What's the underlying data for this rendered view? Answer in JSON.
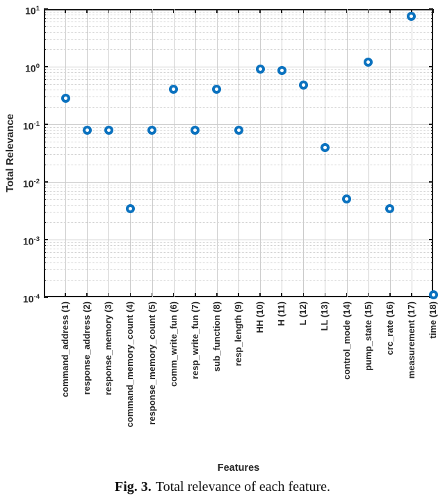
{
  "chart_data": {
    "type": "scatter",
    "title": "",
    "xlabel": "Features",
    "ylabel": "Total Relevance",
    "yscale": "log",
    "ylim": [
      0.0001,
      10
    ],
    "xlim": [
      0,
      18
    ],
    "grid": "on",
    "minor_grid": "on",
    "legend": "none",
    "marker": {
      "style": "open-circle",
      "color": "#0b72bf"
    },
    "y_tick_exponents": [
      1,
      0,
      -1,
      -2,
      -3,
      -4
    ],
    "points": [
      {
        "x": 1,
        "label": "command_address (1)",
        "value": 0.28
      },
      {
        "x": 2,
        "label": "response_address (2)",
        "value": 0.078
      },
      {
        "x": 3,
        "label": "response_memory (3)",
        "value": 0.078
      },
      {
        "x": 4,
        "label": "command_memory_count (4)",
        "value": 0.0034
      },
      {
        "x": 5,
        "label": "response_memory_count (5)",
        "value": 0.078
      },
      {
        "x": 6,
        "label": "comm_write_fun (6)",
        "value": 0.41
      },
      {
        "x": 7,
        "label": "resp_write_fun (7)",
        "value": 0.078
      },
      {
        "x": 8,
        "label": "sub_function (8)",
        "value": 0.41
      },
      {
        "x": 9,
        "label": "resp_length (9)",
        "value": 0.078
      },
      {
        "x": 10,
        "label": "HH (10)",
        "value": 0.9
      },
      {
        "x": 11,
        "label": "H (11)",
        "value": 0.85
      },
      {
        "x": 12,
        "label": "L (12)",
        "value": 0.48
      },
      {
        "x": 13,
        "label": "LL (13)",
        "value": 0.04
      },
      {
        "x": 14,
        "label": "control_mode (14)",
        "value": 0.005
      },
      {
        "x": 15,
        "label": "pump_state (15)",
        "value": 1.2
      },
      {
        "x": 16,
        "label": "crc_rate (16)",
        "value": 0.0034
      },
      {
        "x": 17,
        "label": "measurement (17)",
        "value": 7.5
      },
      {
        "x": 18,
        "label": "time (18)",
        "value": 0.00011
      }
    ]
  },
  "caption": {
    "prefix": "Fig. 3.",
    "text": "Total relevance of each feature."
  }
}
